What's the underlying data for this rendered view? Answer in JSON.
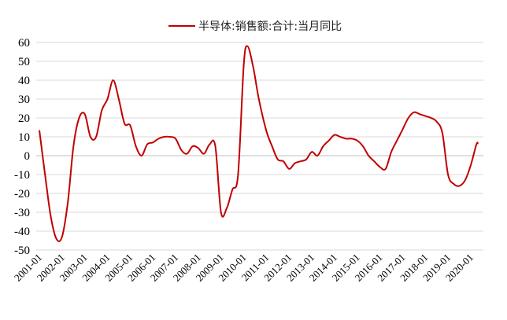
{
  "chart_data": {
    "type": "line",
    "title": "",
    "xlabel": "",
    "ylabel": "",
    "ylim": [
      -50,
      60
    ],
    "yticks": [
      60,
      50,
      40,
      30,
      20,
      10,
      0,
      -10,
      -20,
      -30,
      -40,
      -50
    ],
    "grid": "horizontal",
    "legend_position": "top-center",
    "series_color": "#c00000",
    "x_tick_labels": [
      "2001-01",
      "2002-01",
      "2003-01",
      "2004-01",
      "2005-01",
      "2006-01",
      "2007-01",
      "2008-01",
      "2009-01",
      "2010-01",
      "2011-01",
      "2012-01",
      "2013-01",
      "2014-01",
      "2015-01",
      "2016-01",
      "2017-01",
      "2018-01",
      "2019-01",
      "2020-01"
    ],
    "series": [
      {
        "name": "半导体:销售额:合计:当月同比",
        "points": [
          [
            "2001-01",
            13.5
          ],
          [
            "2001-04",
            -10
          ],
          [
            "2001-07",
            -32
          ],
          [
            "2001-10",
            -44
          ],
          [
            "2002-01",
            -43
          ],
          [
            "2002-04",
            -25
          ],
          [
            "2002-07",
            5
          ],
          [
            "2002-10",
            20
          ],
          [
            "2003-01",
            22
          ],
          [
            "2003-04",
            10
          ],
          [
            "2003-07",
            10
          ],
          [
            "2003-10",
            24
          ],
          [
            "2004-01",
            30
          ],
          [
            "2004-04",
            40
          ],
          [
            "2004-07",
            30
          ],
          [
            "2004-10",
            17
          ],
          [
            "2005-01",
            16
          ],
          [
            "2005-04",
            5
          ],
          [
            "2005-07",
            0
          ],
          [
            "2005-10",
            6
          ],
          [
            "2006-01",
            7
          ],
          [
            "2006-04",
            9
          ],
          [
            "2006-07",
            10
          ],
          [
            "2006-10",
            10
          ],
          [
            "2007-01",
            9
          ],
          [
            "2007-04",
            3
          ],
          [
            "2007-07",
            1
          ],
          [
            "2007-10",
            5
          ],
          [
            "2008-01",
            4
          ],
          [
            "2008-04",
            1
          ],
          [
            "2008-07",
            6
          ],
          [
            "2008-10",
            5
          ],
          [
            "2009-01",
            -30
          ],
          [
            "2009-04",
            -28
          ],
          [
            "2009-07",
            -18
          ],
          [
            "2009-10",
            -10
          ],
          [
            "2010-01",
            48
          ],
          [
            "2010-03",
            58
          ],
          [
            "2010-06",
            47
          ],
          [
            "2010-09",
            30
          ],
          [
            "2011-01",
            13
          ],
          [
            "2011-04",
            5
          ],
          [
            "2011-07",
            -2
          ],
          [
            "2011-10",
            -3
          ],
          [
            "2012-01",
            -7
          ],
          [
            "2012-04",
            -4
          ],
          [
            "2012-07",
            -3
          ],
          [
            "2012-10",
            -2
          ],
          [
            "2013-01",
            2
          ],
          [
            "2013-04",
            0
          ],
          [
            "2013-07",
            5
          ],
          [
            "2013-10",
            8
          ],
          [
            "2014-01",
            11
          ],
          [
            "2014-04",
            10
          ],
          [
            "2014-07",
            9
          ],
          [
            "2014-10",
            9
          ],
          [
            "2015-01",
            8
          ],
          [
            "2015-04",
            5
          ],
          [
            "2015-07",
            0
          ],
          [
            "2015-10",
            -3
          ],
          [
            "2016-01",
            -6
          ],
          [
            "2016-04",
            -7
          ],
          [
            "2016-07",
            2
          ],
          [
            "2016-10",
            8
          ],
          [
            "2017-01",
            14
          ],
          [
            "2017-04",
            20
          ],
          [
            "2017-07",
            23
          ],
          [
            "2017-10",
            22
          ],
          [
            "2018-01",
            21
          ],
          [
            "2018-04",
            20
          ],
          [
            "2018-07",
            18
          ],
          [
            "2018-10",
            12
          ],
          [
            "2019-01",
            -10
          ],
          [
            "2019-04",
            -15
          ],
          [
            "2019-07",
            -16
          ],
          [
            "2019-10",
            -13
          ],
          [
            "2020-01",
            -5
          ],
          [
            "2020-04",
            6
          ],
          [
            "2020-05",
            6.5
          ]
        ]
      }
    ]
  }
}
